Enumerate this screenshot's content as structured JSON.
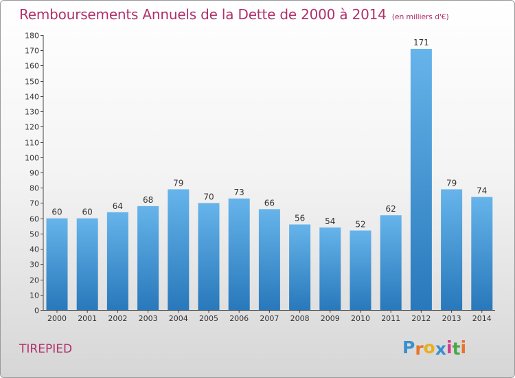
{
  "header": {
    "title": "Remboursements Annuels de la Dette de 2000 à 2014",
    "unit": "(en milliers d'€)"
  },
  "footer": {
    "commune": "TIREPIED",
    "logo": [
      "P",
      "r",
      "o",
      "x",
      "i",
      "t",
      "i"
    ]
  },
  "colors": {
    "bar_top": "#66b4ea",
    "bar_bottom": "#2878bb",
    "title": "#b0306a",
    "logo": [
      "#3a8fd0",
      "#e8732b",
      "#e8b021",
      "#3a8fd0",
      "#d43a8a",
      "#49a84a",
      "#e8732b"
    ]
  },
  "chart_data": {
    "type": "bar",
    "title": "Remboursements Annuels de la Dette de 2000 à 2014",
    "xlabel": "",
    "ylabel": "",
    "categories": [
      "2000",
      "2001",
      "2002",
      "2003",
      "2004",
      "2005",
      "2006",
      "2007",
      "2008",
      "2009",
      "2010",
      "2011",
      "2012",
      "2013",
      "2014"
    ],
    "values": [
      60,
      60,
      64,
      68,
      79,
      70,
      73,
      66,
      56,
      54,
      52,
      62,
      171,
      79,
      74
    ],
    "ylim": [
      0,
      180
    ],
    "yticks": [
      0,
      10,
      20,
      30,
      40,
      50,
      60,
      70,
      80,
      90,
      100,
      110,
      120,
      130,
      140,
      150,
      160,
      170,
      180
    ],
    "grid": false,
    "legend": "none"
  }
}
